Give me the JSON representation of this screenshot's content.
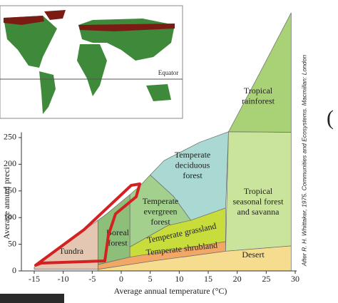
{
  "chart_data": {
    "type": "biome",
    "xlabel": "Average annual temperature (°C)",
    "ylabel": "Average annual preci",
    "credit": "After R. H. Whittaker, 1975. Communities and Ecosystems. Macmillan: London",
    "xlim": [
      -15,
      30
    ],
    "ylim": [
      0,
      260
    ],
    "xticks": [
      -15,
      -10,
      -5,
      0,
      5,
      10,
      15,
      20,
      25,
      30
    ],
    "yticks": [
      0,
      50,
      100,
      150,
      200,
      250
    ],
    "regions": [
      {
        "label": [
          "Desert"
        ],
        "color": "#f6dc8e",
        "points": [
          [
            -4,
            0
          ],
          [
            29.3,
            0
          ],
          [
            29.3,
            47
          ],
          [
            18,
            37
          ],
          [
            5,
            18
          ],
          [
            -4,
            3
          ]
        ]
      },
      {
        "label": [
          "Temperate shrubland"
        ],
        "color": "#f1a766",
        "points": [
          [
            -4,
            3
          ],
          [
            5,
            18
          ],
          [
            18,
            37
          ],
          [
            18,
            55
          ],
          [
            5,
            35
          ],
          [
            -4,
            12
          ]
        ]
      },
      {
        "label": [
          "Tundra"
        ],
        "color": "#e3c7b3",
        "points": [
          [
            -15,
            3
          ],
          [
            -4,
            3
          ],
          [
            -4,
            95
          ],
          [
            -8.6,
            60
          ],
          [
            -15,
            7
          ]
        ]
      },
      {
        "label": [
          "Boreal",
          "forest"
        ],
        "color": "#8dbf7a",
        "points": [
          [
            -4,
            12
          ],
          [
            1.5,
            26
          ],
          [
            1.5,
            143
          ],
          [
            -2.5,
            107
          ],
          [
            -4,
            95
          ]
        ]
      },
      {
        "label": [
          "Temperate grassland"
        ],
        "color": "#c8dc3c",
        "points": [
          [
            1.5,
            26
          ],
          [
            18,
            55
          ],
          [
            18,
            118
          ],
          [
            8,
            85
          ],
          [
            1.5,
            45
          ]
        ]
      },
      {
        "label": [
          "Temperate",
          "evergreen",
          "forest"
        ],
        "color": "#a3d08c",
        "points": [
          [
            1.5,
            45
          ],
          [
            8,
            85
          ],
          [
            12,
            95
          ],
          [
            9,
            140
          ],
          [
            5,
            180
          ],
          [
            3.1,
            158
          ],
          [
            1.5,
            143
          ]
        ]
      },
      {
        "label": [
          "Temperate",
          "deciduous",
          "forest"
        ],
        "color": "#a9d9d2",
        "points": [
          [
            5,
            180
          ],
          [
            9,
            140
          ],
          [
            12,
            95
          ],
          [
            18,
            118
          ],
          [
            18.5,
            261
          ],
          [
            13.5,
            241
          ],
          [
            7.4,
            207
          ]
        ]
      },
      {
        "label": [
          "Tropical",
          "seasonal forest",
          "and savanna"
        ],
        "color": "#cbe49c",
        "points": [
          [
            18,
            37
          ],
          [
            29.3,
            47
          ],
          [
            29.3,
            260
          ],
          [
            18.5,
            261
          ]
        ]
      },
      {
        "label": [
          "Tropical",
          "rainforest"
        ],
        "color": "#a8d275",
        "points": [
          [
            18.5,
            261
          ],
          [
            29.3,
            260
          ],
          [
            29.3,
            484
          ],
          [
            23.4,
            361
          ]
        ]
      }
    ]
  },
  "map": {
    "equator_label": "Equator"
  },
  "edge_text": "("
}
